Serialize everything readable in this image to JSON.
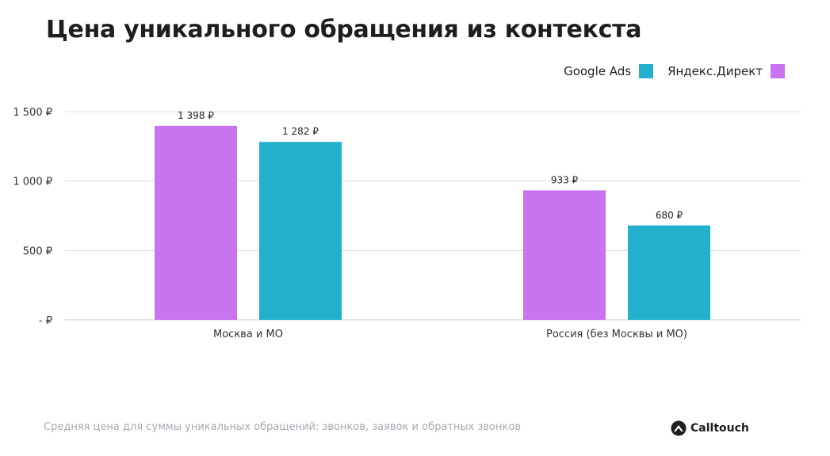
{
  "title": "Цена уникального обращения из контекста",
  "footnote": "Средняя цена для суммы уникальных обращений: звонков, заявок и обратных звонков",
  "brand": {
    "name": "Calltouch"
  },
  "legend": [
    {
      "label": "Google Ads",
      "color": "#23b0cc"
    },
    {
      "label": "Яндекс.Директ",
      "color": "#c873ef"
    }
  ],
  "chart_data": {
    "type": "bar",
    "categories": [
      "Москва и МО",
      "Россия (без Москвы и МО)"
    ],
    "series": [
      {
        "name": "Яндекс.Директ",
        "color": "#c873ef",
        "values": [
          1398,
          933
        ],
        "value_labels": [
          "1 398 ₽",
          "933 ₽"
        ]
      },
      {
        "name": "Google Ads",
        "color": "#23b0cc",
        "values": [
          1282,
          680
        ],
        "value_labels": [
          "1 282 ₽",
          "680 ₽"
        ]
      }
    ],
    "y_ticks": [
      0,
      500,
      1000,
      1500
    ],
    "y_tick_labels": [
      "-  ₽",
      "500 ₽",
      "1 000 ₽",
      "1 500 ₽"
    ],
    "ylim": [
      0,
      1500
    ],
    "grid": true,
    "legend_position": "top-right"
  }
}
